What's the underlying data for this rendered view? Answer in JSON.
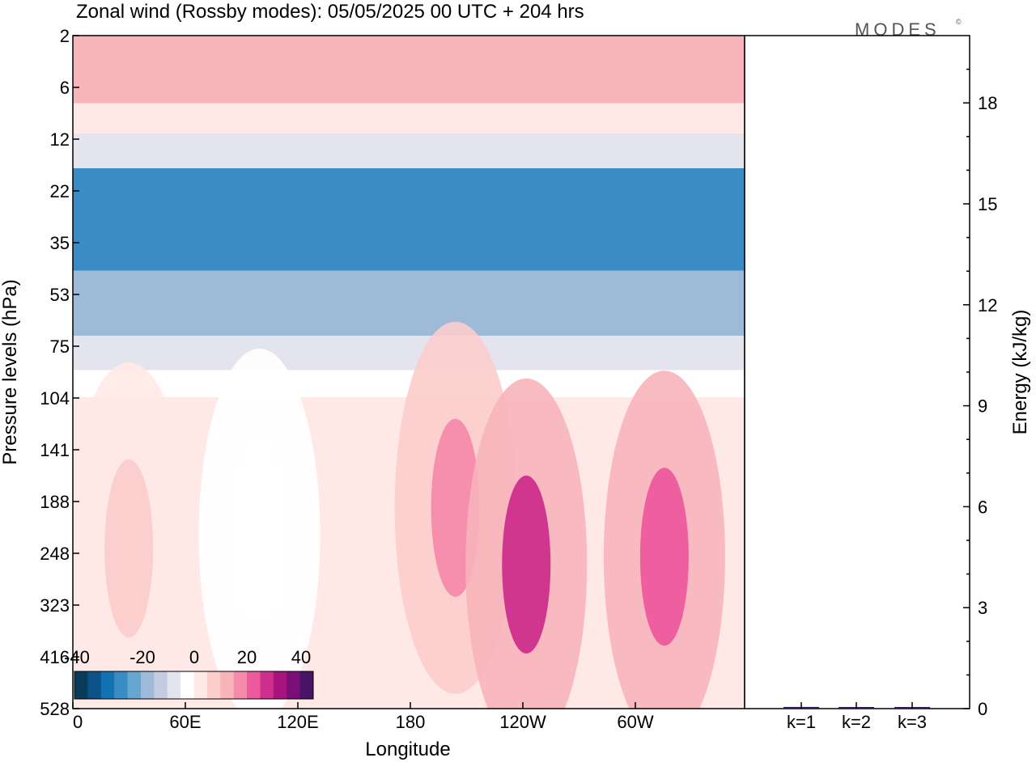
{
  "chart_data": [
    {
      "type": "heatmap",
      "title": "Zonal wind (Rossby modes):  05/05/2025  00 UTC  + 204 hrs",
      "xlabel": "Longitude",
      "ylabel": "Pressure levels (hPa)",
      "x_ticks": [
        "0",
        "60E",
        "120E",
        "180",
        "120W",
        "60W"
      ],
      "y_ticks": [
        "2",
        "6",
        "12",
        "22",
        "35",
        "53",
        "75",
        "104",
        "141",
        "188",
        "248",
        "323",
        "416",
        "528"
      ],
      "y_scale": "log",
      "colorbar": {
        "ticks": [
          "-40",
          "-20",
          "0",
          "20",
          "40"
        ],
        "range": [
          -45,
          45
        ],
        "colors": [
          "#0b3a5a",
          "#0c5488",
          "#1273b2",
          "#3a8cc4",
          "#66a6d0",
          "#9dbbd9",
          "#c4cbe2",
          "#e4e4ef",
          "#ffffff",
          "#ffe9e6",
          "#fbcdcb",
          "#f7b4bb",
          "#f58aac",
          "#ec5a9c",
          "#cf2e8c",
          "#a9137e",
          "#7b0f78",
          "#4a1466"
        ]
      },
      "bands": [
        {
          "pressure_hPa": [
            2,
            3.5
          ],
          "u_ms": 12
        },
        {
          "pressure_hPa": [
            3.5,
            4.5
          ],
          "u_ms": 4
        },
        {
          "pressure_hPa": [
            4.5,
            6
          ],
          "u_ms": -8
        },
        {
          "pressure_hPa": [
            6,
            14
          ],
          "u_ms": -28
        },
        {
          "pressure_hPa": [
            14,
            24
          ],
          "u_ms": -18
        },
        {
          "pressure_hPa": [
            24,
            32
          ],
          "u_ms": -9
        },
        {
          "pressure_hPa": [
            32,
            40
          ],
          "u_ms": -3
        },
        {
          "pressure_hPa": [
            40,
            528
          ],
          "u_ms": 2
        }
      ],
      "features": [
        {
          "longitude": 205,
          "pressure_hPa": 100,
          "u_ms": 15
        },
        {
          "longitude": 243,
          "pressure_hPa": 160,
          "u_ms": 25
        },
        {
          "longitude": 317,
          "pressure_hPa": 150,
          "u_ms": 22
        },
        {
          "longitude": 30,
          "pressure_hPa": 140,
          "u_ms": 8
        },
        {
          "longitude": 100,
          "pressure_hPa": 125,
          "u_ms": -4
        }
      ],
      "grid": false
    },
    {
      "type": "bar",
      "categories": [
        "k=1",
        "k=2",
        "k=3"
      ],
      "values": [
        0.05,
        0.02,
        0.01
      ],
      "ylabel": "Energy (kJ/kg)",
      "y_ticks": [
        "0",
        "3",
        "6",
        "9",
        "12",
        "15",
        "18"
      ],
      "ylim": [
        0,
        20
      ]
    }
  ],
  "logo": {
    "text": "MODES",
    "mark": "©"
  }
}
